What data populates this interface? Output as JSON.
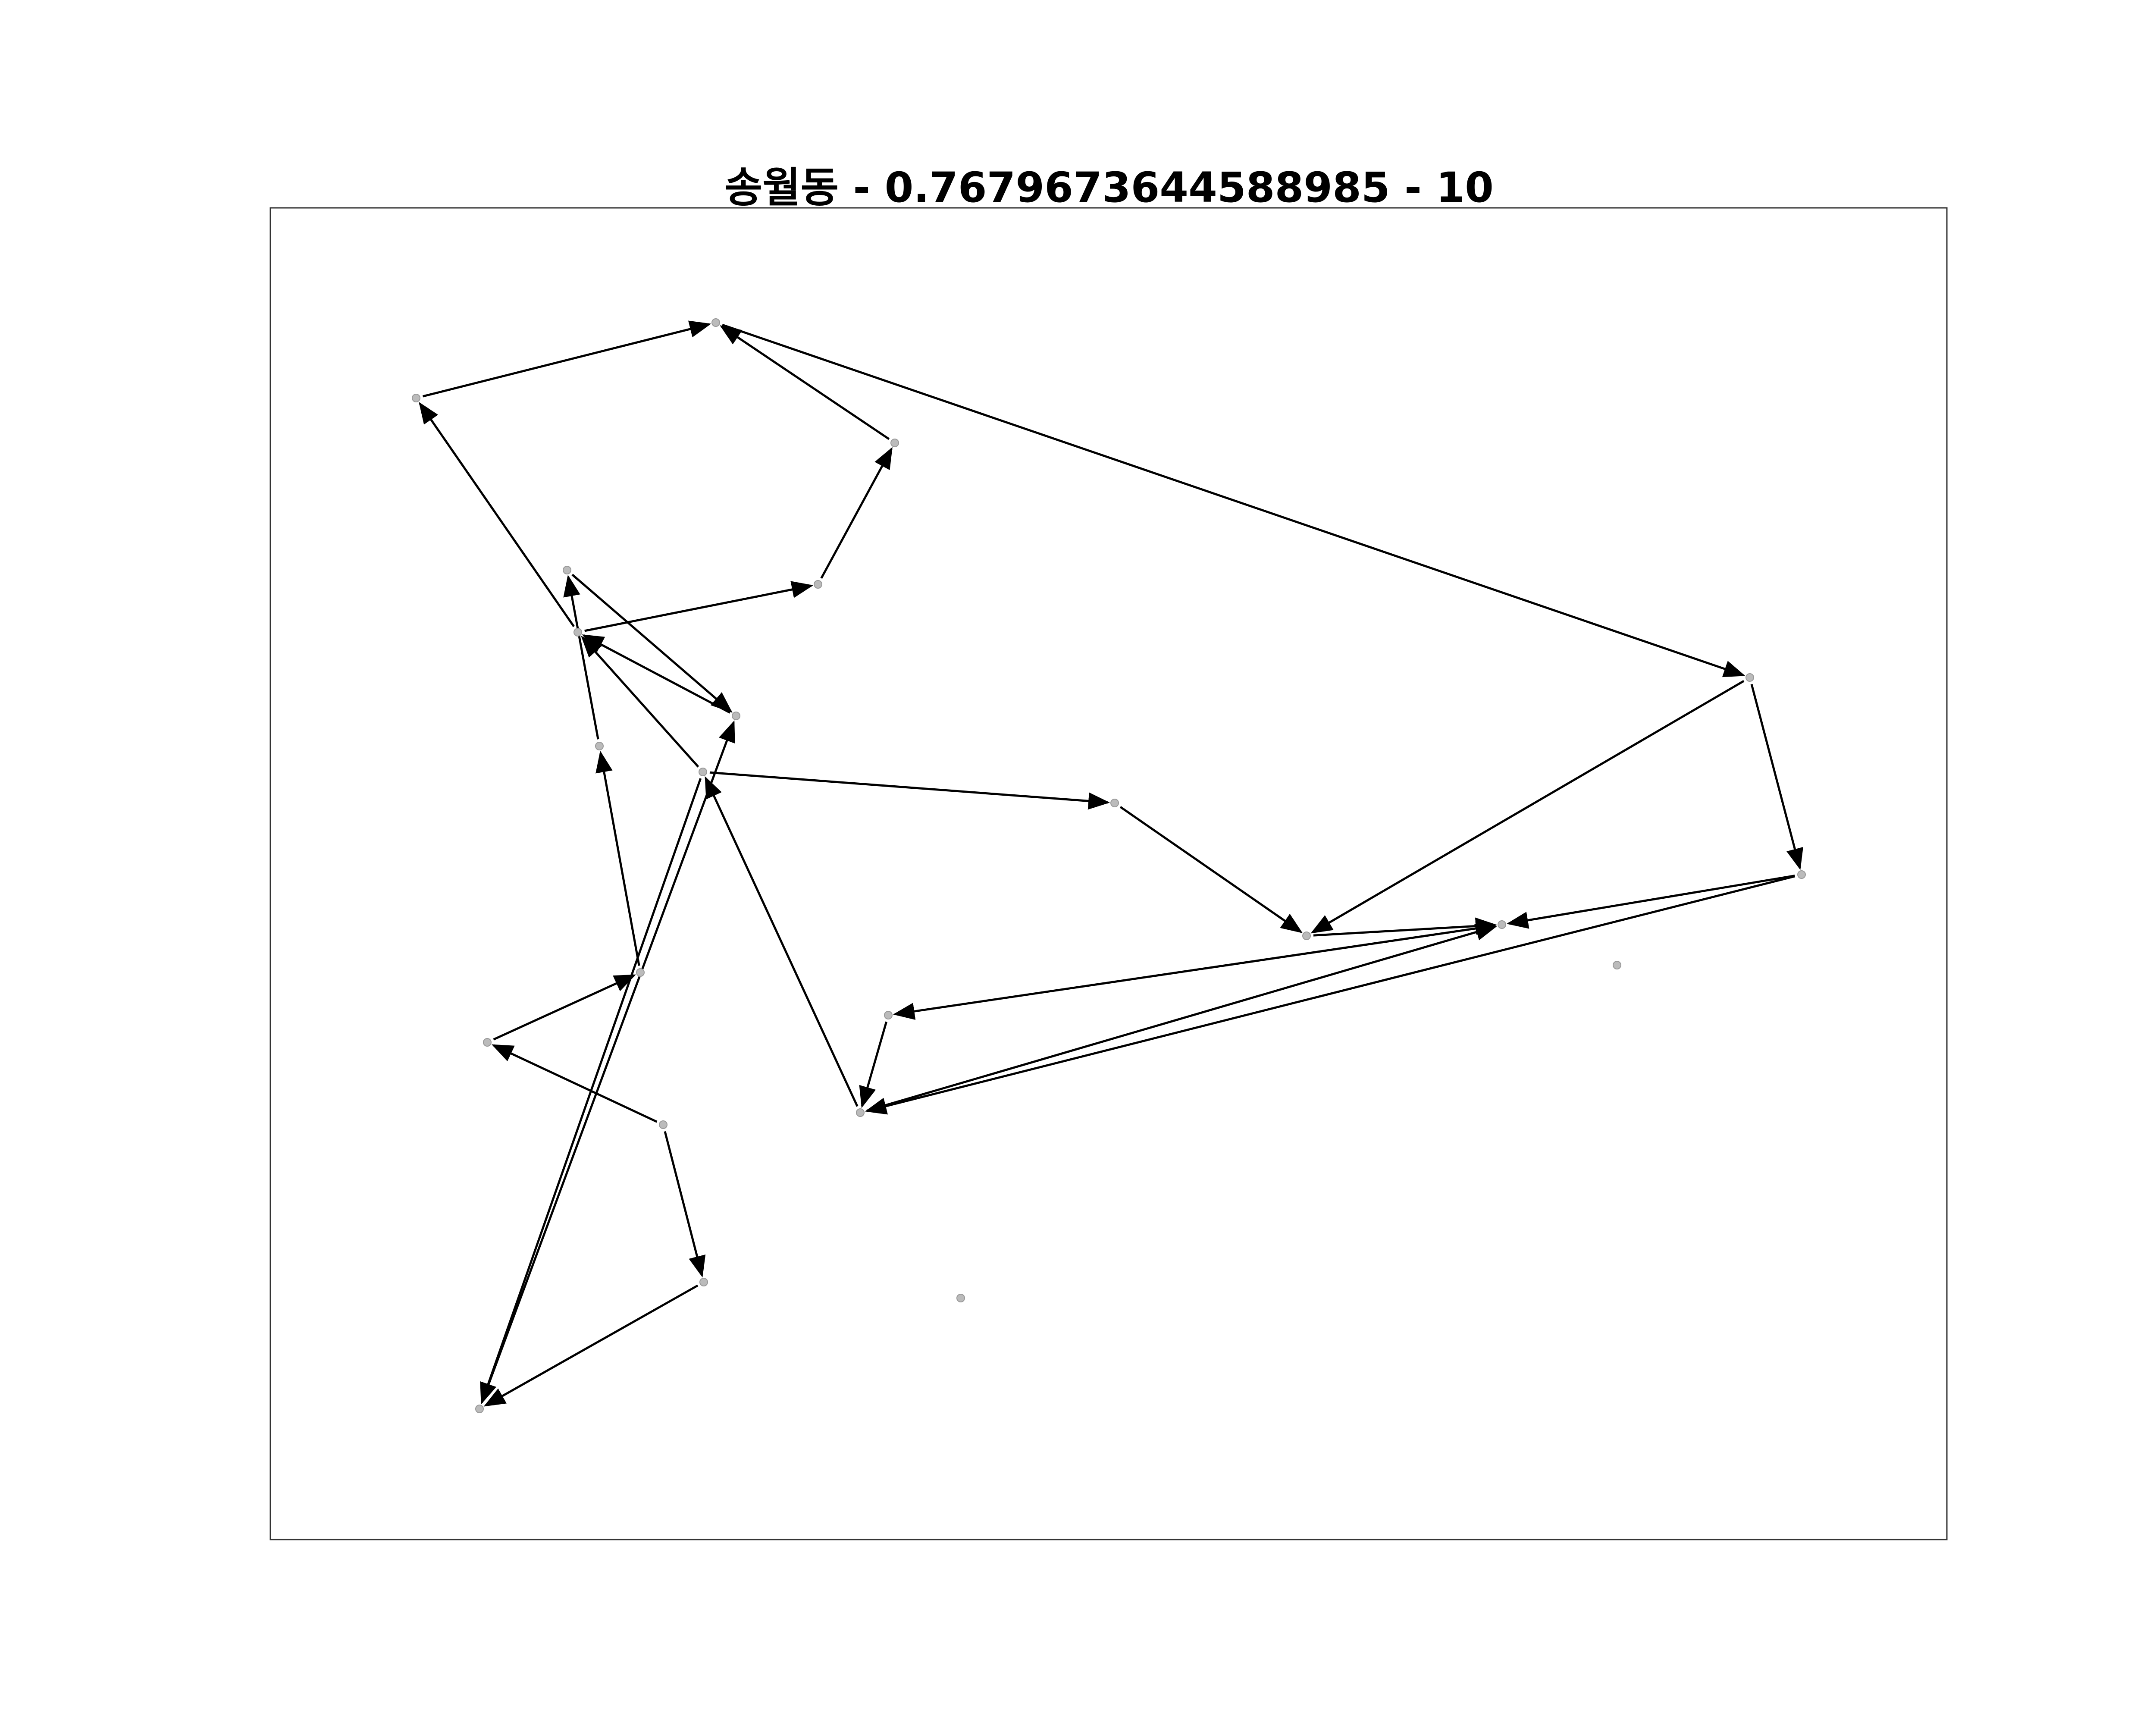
{
  "title": "송월동 - 0.7679673644588985 - 10",
  "colors": {
    "edge": "#000000",
    "node": "#bbbbbb",
    "frame": "#333333"
  },
  "diagram": {
    "nodes": [
      {
        "id": "n1"
      },
      {
        "id": "n2"
      },
      {
        "id": "n3"
      },
      {
        "id": "n4"
      },
      {
        "id": "n5"
      },
      {
        "id": "n6"
      },
      {
        "id": "n7"
      },
      {
        "id": "n8"
      },
      {
        "id": "n9"
      },
      {
        "id": "n10"
      },
      {
        "id": "n11"
      },
      {
        "id": "n12"
      },
      {
        "id": "n13"
      },
      {
        "id": "n14"
      },
      {
        "id": "n15"
      },
      {
        "id": "n16"
      },
      {
        "id": "n17"
      },
      {
        "id": "n18"
      },
      {
        "id": "n19"
      },
      {
        "id": "n20"
      },
      {
        "id": "n21"
      },
      {
        "id": "n22"
      },
      {
        "id": "n23"
      }
    ],
    "edges": [
      {
        "from": "n1",
        "to": "n2"
      },
      {
        "from": "n3",
        "to": "n2"
      },
      {
        "from": "n4",
        "to": "n3"
      },
      {
        "from": "n5",
        "to": "n1"
      },
      {
        "from": "n5",
        "to": "n4"
      },
      {
        "from": "n6",
        "to": "n8"
      },
      {
        "from": "n8",
        "to": "n5"
      },
      {
        "from": "n7",
        "to": "n6"
      },
      {
        "from": "n9",
        "to": "n5"
      },
      {
        "from": "n9",
        "to": "n10"
      },
      {
        "from": "n9",
        "to": "n20"
      },
      {
        "from": "n10",
        "to": "n12"
      },
      {
        "from": "n2",
        "to": "n11"
      },
      {
        "from": "n11",
        "to": "n12"
      },
      {
        "from": "n11",
        "to": "n13"
      },
      {
        "from": "n13",
        "to": "n14"
      },
      {
        "from": "n13",
        "to": "n17"
      },
      {
        "from": "n12",
        "to": "n14"
      },
      {
        "from": "n14",
        "to": "n16"
      },
      {
        "from": "n16",
        "to": "n17"
      },
      {
        "from": "n17",
        "to": "n14"
      },
      {
        "from": "n17",
        "to": "n9"
      },
      {
        "from": "n18",
        "to": "n7"
      },
      {
        "from": "n19",
        "to": "n18"
      },
      {
        "from": "n20",
        "to": "n8"
      },
      {
        "from": "n21",
        "to": "n20"
      },
      {
        "from": "n22",
        "to": "n21"
      },
      {
        "from": "n22",
        "to": "n19"
      }
    ]
  }
}
